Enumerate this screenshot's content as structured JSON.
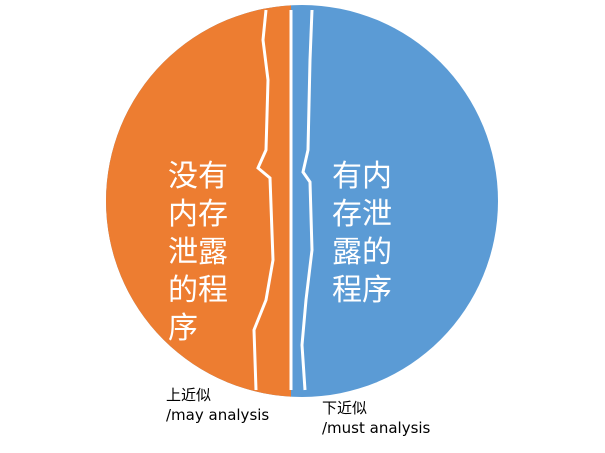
{
  "regions": [
    {
      "lines": [
        "没有",
        "内存",
        "泄露",
        "的程",
        "序"
      ]
    },
    {
      "lines": [
        "有内",
        "存泄",
        "露的",
        "程序"
      ]
    }
  ],
  "labels": [
    {
      "lines": [
        "上近似",
        "/may analysis"
      ]
    },
    {
      "lines": [
        "下近似",
        "/must analysis"
      ]
    }
  ]
}
